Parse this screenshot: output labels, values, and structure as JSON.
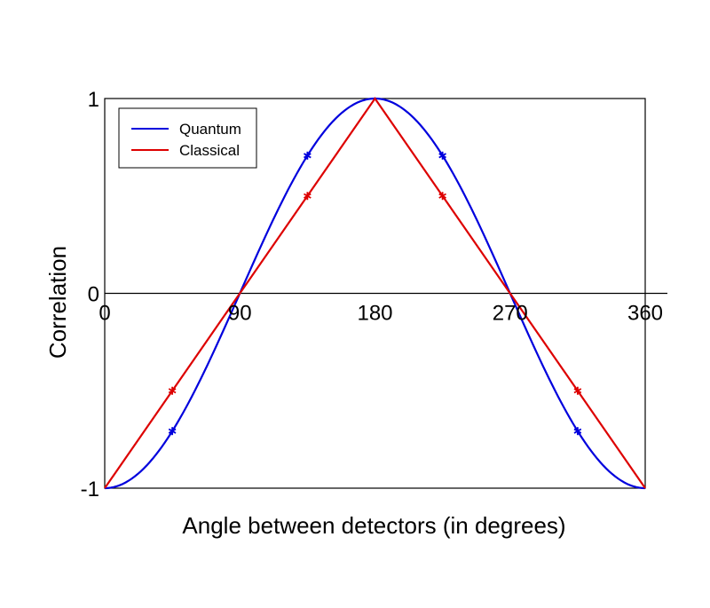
{
  "chart_data": {
    "type": "line",
    "title": "",
    "xlabel": "Angle between detectors (in degrees)",
    "ylabel": "Correlation",
    "xlim": [
      0,
      360
    ],
    "ylim": [
      -1,
      1
    ],
    "x_ticks": [
      {
        "value": 0,
        "label": "0"
      },
      {
        "value": 90,
        "label": "90"
      },
      {
        "value": 180,
        "label": "180"
      },
      {
        "value": 270,
        "label": "270"
      },
      {
        "value": 360,
        "label": "360"
      }
    ],
    "y_ticks": [
      {
        "value": 1,
        "label": "1"
      },
      {
        "value": 0,
        "label": "0"
      },
      {
        "value": -1,
        "label": "-1"
      }
    ],
    "legend": {
      "position": "top-left"
    },
    "series": [
      {
        "name": "Quantum",
        "color": "#0000dd",
        "function": "-cos(x)",
        "x": [
          0,
          45,
          90,
          135,
          180,
          225,
          270,
          315,
          360
        ],
        "y": [
          -1,
          -0.707,
          0,
          0.707,
          1,
          0.707,
          0,
          -0.707,
          -1
        ],
        "markers": {
          "x": [
            45,
            135,
            225,
            315
          ],
          "y": [
            -0.707,
            0.707,
            0.707,
            -0.707
          ]
        }
      },
      {
        "name": "Classical",
        "color": "#dd0000",
        "x": [
          0,
          45,
          90,
          135,
          180,
          225,
          270,
          315,
          360
        ],
        "y": [
          -1,
          -0.5,
          0,
          0.5,
          1,
          0.5,
          0,
          -0.5,
          -1
        ],
        "markers": {
          "x": [
            45,
            135,
            225,
            315
          ],
          "y": [
            -0.5,
            0.5,
            0.5,
            -0.5
          ]
        }
      }
    ]
  }
}
